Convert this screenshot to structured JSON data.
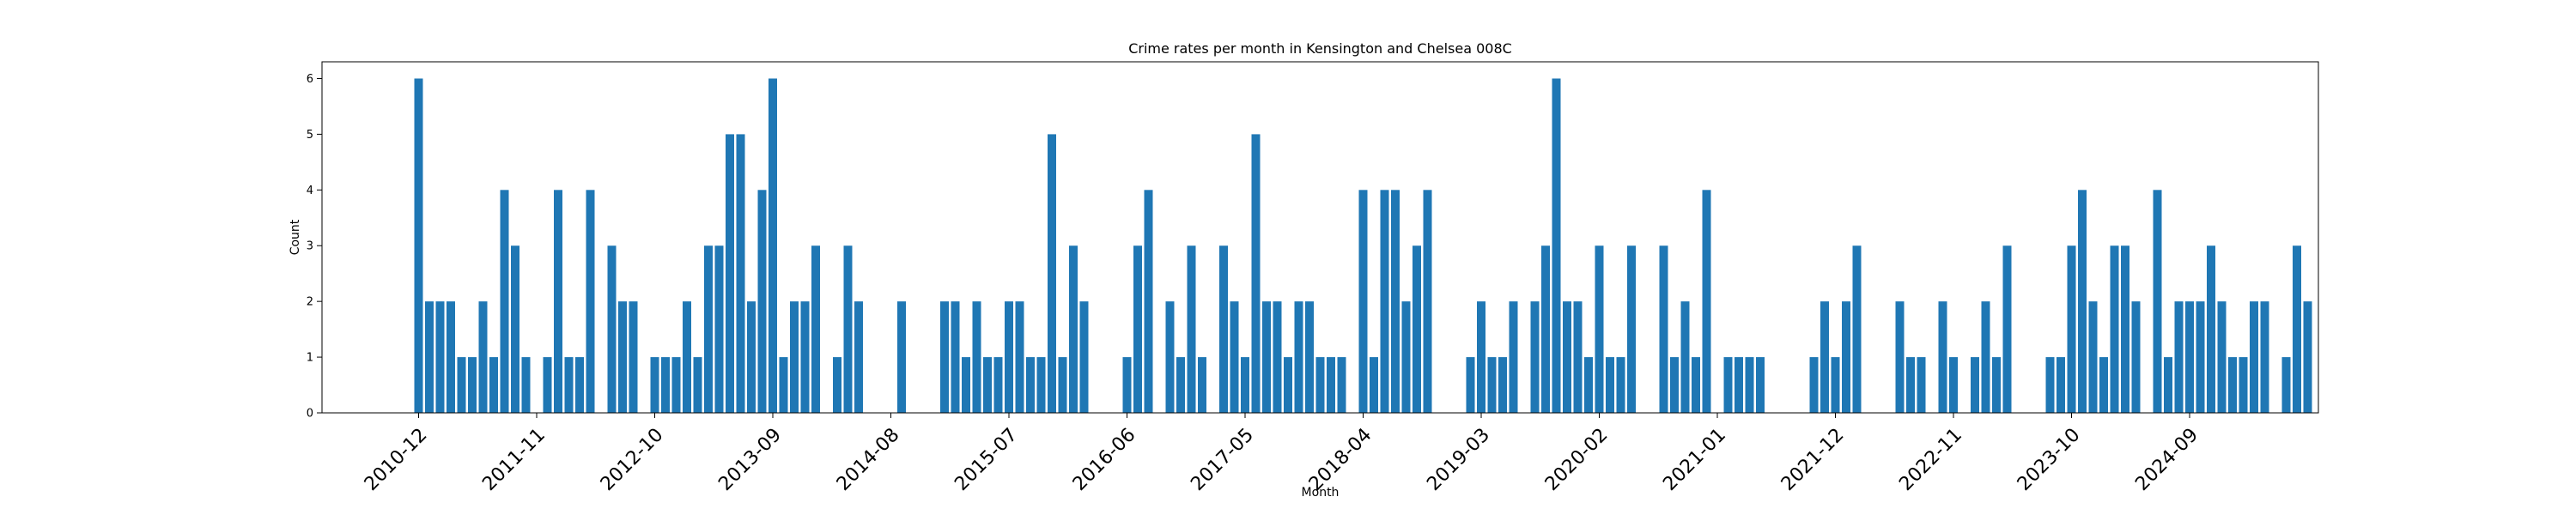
{
  "chart_data": {
    "type": "bar",
    "title": "Crime rates per month in Kensington and Chelsea 008C",
    "xlabel": "Month",
    "ylabel": "Count",
    "ylim": [
      0,
      6.3
    ],
    "yticks": [
      0,
      1,
      2,
      3,
      4,
      5,
      6
    ],
    "xlim": [
      -9,
      177
    ],
    "start_month": "2010-12",
    "x_ticks": [
      {
        "label": "2010-12",
        "index": 0
      },
      {
        "label": "2011-11",
        "index": 11
      },
      {
        "label": "2012-10",
        "index": 22
      },
      {
        "label": "2013-09",
        "index": 33
      },
      {
        "label": "2014-08",
        "index": 44
      },
      {
        "label": "2015-07",
        "index": 55
      },
      {
        "label": "2016-06",
        "index": 66
      },
      {
        "label": "2017-05",
        "index": 77
      },
      {
        "label": "2018-04",
        "index": 88
      },
      {
        "label": "2019-03",
        "index": 99
      },
      {
        "label": "2020-02",
        "index": 110
      },
      {
        "label": "2021-01",
        "index": 121
      },
      {
        "label": "2021-12",
        "index": 132
      },
      {
        "label": "2022-11",
        "index": 143
      },
      {
        "label": "2023-10",
        "index": 154
      },
      {
        "label": "2024-09",
        "index": 165
      }
    ],
    "bar_color": "#1f77b4",
    "values": [
      6,
      2,
      2,
      2,
      1,
      1,
      2,
      1,
      4,
      3,
      1,
      0,
      1,
      4,
      1,
      1,
      4,
      0,
      3,
      2,
      2,
      0,
      1,
      1,
      1,
      2,
      1,
      3,
      3,
      5,
      5,
      2,
      4,
      6,
      1,
      2,
      2,
      3,
      0,
      1,
      3,
      2,
      0,
      0,
      0,
      2,
      0,
      0,
      0,
      2,
      2,
      1,
      2,
      1,
      1,
      2,
      2,
      1,
      1,
      5,
      1,
      3,
      2,
      0,
      0,
      0,
      1,
      3,
      4,
      0,
      2,
      1,
      3,
      1,
      0,
      3,
      2,
      1,
      5,
      2,
      2,
      1,
      2,
      2,
      1,
      1,
      1,
      0,
      4,
      1,
      4,
      4,
      2,
      3,
      4,
      0,
      0,
      0,
      1,
      2,
      1,
      1,
      2,
      0,
      2,
      3,
      6,
      2,
      2,
      1,
      3,
      1,
      1,
      3,
      0,
      0,
      3,
      1,
      2,
      1,
      4,
      0,
      1,
      1,
      1,
      1,
      0,
      0,
      0,
      0,
      1,
      2,
      1,
      2,
      3,
      0,
      0,
      0,
      2,
      1,
      1,
      0,
      2,
      1,
      0,
      1,
      2,
      1,
      3,
      0,
      0,
      0,
      1,
      1,
      3,
      4,
      2,
      1,
      3,
      3,
      2,
      0,
      4,
      1,
      2,
      2,
      2,
      3,
      2,
      1,
      1,
      2,
      2,
      0,
      1,
      3,
      2
    ]
  }
}
